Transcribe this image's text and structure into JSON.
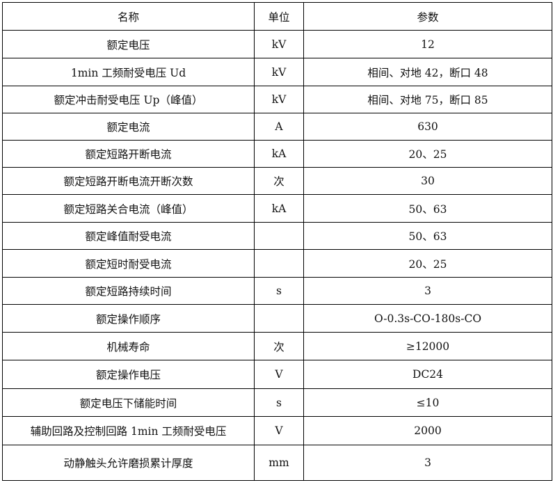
{
  "header": {
    "name": "名称",
    "unit": "单位",
    "param": "参数"
  },
  "rows": [
    {
      "name": "额定电压",
      "unit": "kV",
      "value": "12"
    },
    {
      "name": "1min 工频耐受电压 Ud",
      "unit": "kV",
      "value": "相间、对地 42，断口 48"
    },
    {
      "name": "额定冲击耐受电压 Up（峰值）",
      "unit": "kV",
      "value": "相间、对地 75，断口 85"
    },
    {
      "name": "额定电流",
      "unit": "A",
      "value": "630"
    },
    {
      "name": "额定短路开断电流",
      "unit": "kA",
      "value": "20、25"
    },
    {
      "name": "额定短路开断电流开断次数",
      "unit": "次",
      "value": "30"
    },
    {
      "name": "额定短路关合电流（峰值）",
      "unit": "kA",
      "value": "50、63"
    },
    {
      "name": "额定峰值耐受电流",
      "unit": "",
      "value": "50、63"
    },
    {
      "name": "额定短时耐受电流",
      "unit": "",
      "value": "20、25"
    },
    {
      "name": "额定短路持续时间",
      "unit": "s",
      "value": "3"
    },
    {
      "name": "额定操作顺序",
      "unit": "",
      "value": "O-0.3s-CO-180s-CO"
    },
    {
      "name": "机械寿命",
      "unit": "次",
      "value": "≥12000"
    },
    {
      "name": "额定操作电压",
      "unit": "V",
      "value": "DC24"
    },
    {
      "name": "额定电压下储能时间",
      "unit": "s",
      "value": "≤10"
    },
    {
      "name": "辅助回路及控制回路 1min 工频耐受电压",
      "unit": "V",
      "value": "2000"
    },
    {
      "name": "动静触头允许磨损累计厚度",
      "unit": "mm",
      "value": "3"
    }
  ]
}
